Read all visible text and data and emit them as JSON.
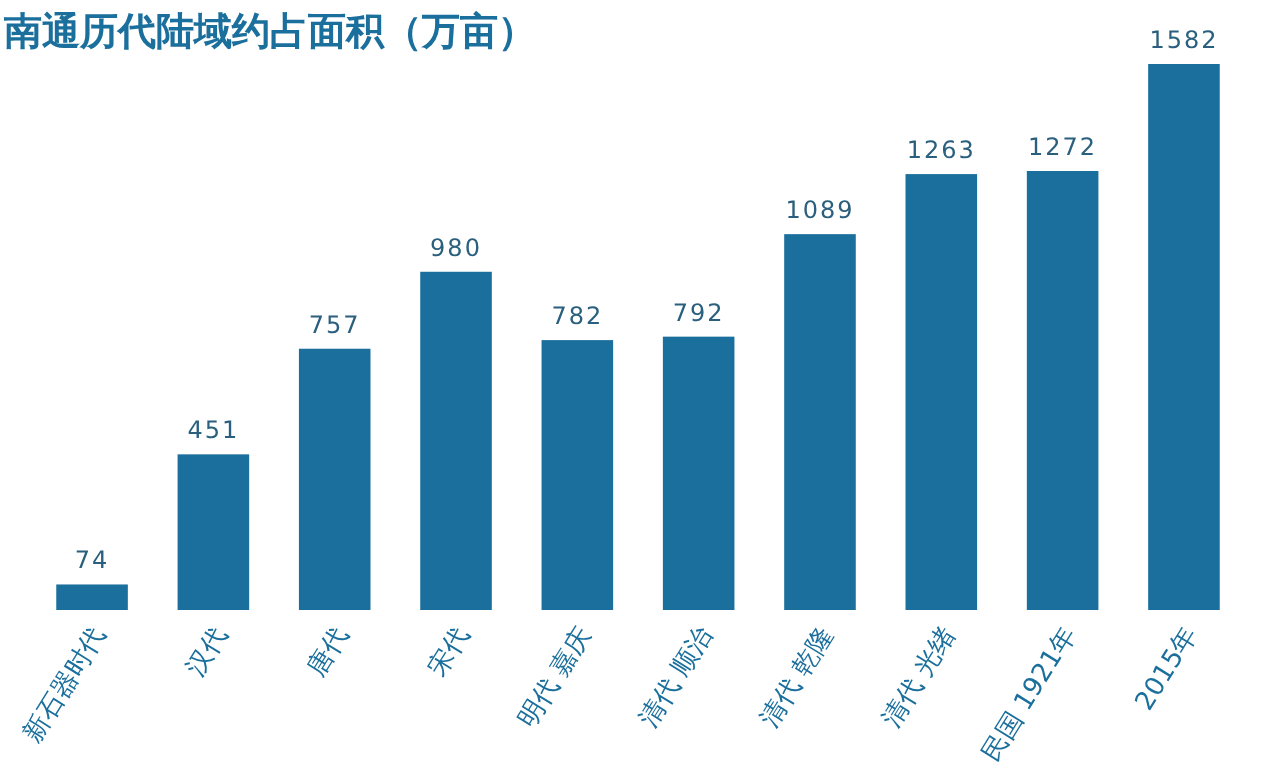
{
  "chart_data": {
    "type": "bar",
    "title": "南通历代陆域约占面积（万亩）",
    "categories": [
      "新石器时代",
      "汉代",
      "唐代",
      "宋代",
      "明代 嘉庆",
      "清代 顺治",
      "清代 乾隆",
      "清代 光绪",
      "民国 1921年",
      "2015年"
    ],
    "values": [
      74,
      451,
      757,
      980,
      782,
      792,
      1089,
      1263,
      1272,
      1582
    ],
    "color": "#1b6f9c",
    "data_labels": true
  }
}
